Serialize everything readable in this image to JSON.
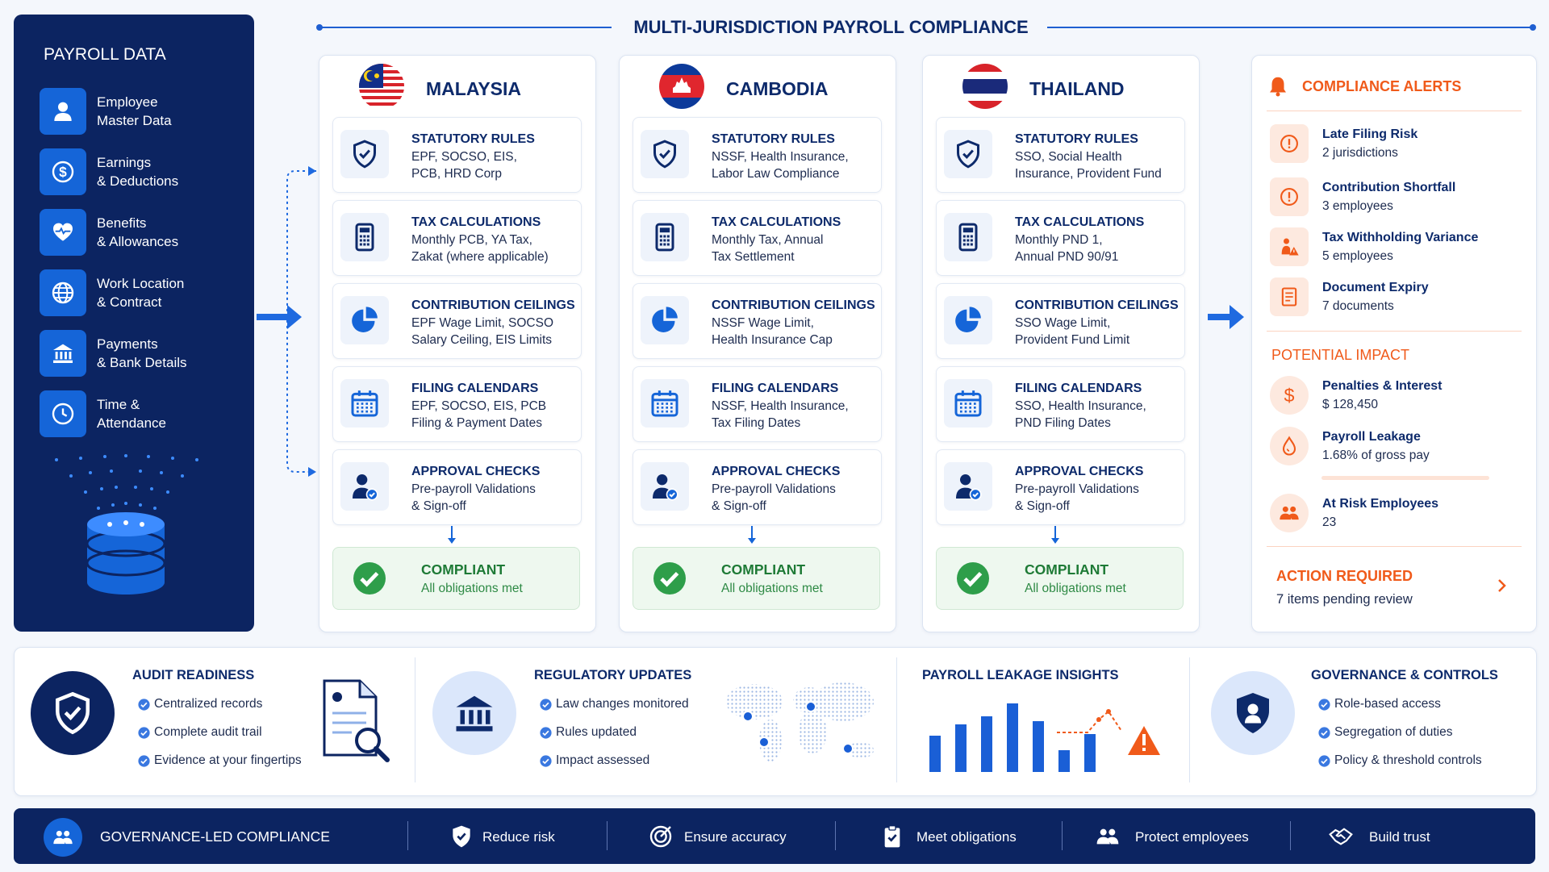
{
  "header": {
    "title": "MULTI-JURISDICTION PAYROLL COMPLIANCE"
  },
  "payroll_data": {
    "title": "PAYROLL DATA",
    "items": [
      {
        "line1": "Employee",
        "line2": "Master Data"
      },
      {
        "line1": "Earnings",
        "line2": "& Deductions"
      },
      {
        "line1": "Benefits",
        "line2": "& Allowances"
      },
      {
        "line1": "Work Location",
        "line2": "& Contract"
      },
      {
        "line1": "Payments",
        "line2": "& Bank Details"
      },
      {
        "line1": "Time &",
        "line2": "Attendance"
      }
    ]
  },
  "jurisdictions": [
    {
      "name": "MALAYSIA",
      "checks": [
        {
          "title": "STATUTORY RULES",
          "lines": [
            "EPF, SOCSO, EIS,",
            "PCB, HRD Corp"
          ]
        },
        {
          "title": "TAX CALCULATIONS",
          "lines": [
            "Monthly PCB, YA Tax,",
            "Zakat (where applicable)"
          ]
        },
        {
          "title": "CONTRIBUTION CEILINGS",
          "lines": [
            "EPF Wage Limit, SOCSO",
            "Salary Ceiling, EIS Limits"
          ]
        },
        {
          "title": "FILING CALENDARS",
          "lines": [
            "EPF, SOCSO, EIS, PCB",
            "Filing & Payment Dates"
          ]
        },
        {
          "title": "APPROVAL CHECKS",
          "lines": [
            "Pre-payroll Validations",
            "& Sign-off"
          ]
        }
      ],
      "status": {
        "title": "COMPLIANT",
        "detail": "All obligations met"
      }
    },
    {
      "name": "CAMBODIA",
      "checks": [
        {
          "title": "STATUTORY RULES",
          "lines": [
            "NSSF, Health Insurance,",
            "Labor Law Compliance"
          ]
        },
        {
          "title": "TAX CALCULATIONS",
          "lines": [
            "Monthly Tax, Annual",
            "Tax Settlement"
          ]
        },
        {
          "title": "CONTRIBUTION CEILINGS",
          "lines": [
            "NSSF Wage Limit,",
            "Health Insurance Cap"
          ]
        },
        {
          "title": "FILING CALENDARS",
          "lines": [
            "NSSF, Health Insurance,",
            "Tax Filing Dates"
          ]
        },
        {
          "title": "APPROVAL CHECKS",
          "lines": [
            "Pre-payroll Validations",
            "& Sign-off"
          ]
        }
      ],
      "status": {
        "title": "COMPLIANT",
        "detail": "All obligations met"
      }
    },
    {
      "name": "THAILAND",
      "checks": [
        {
          "title": "STATUTORY RULES",
          "lines": [
            "SSO, Social Health",
            "Insurance, Provident Fund"
          ]
        },
        {
          "title": "TAX CALCULATIONS",
          "lines": [
            "Monthly PND 1,",
            "Annual PND 90/91"
          ]
        },
        {
          "title": "CONTRIBUTION CEILINGS",
          "lines": [
            "SSO Wage Limit,",
            "Provident Fund Limit"
          ]
        },
        {
          "title": "FILING CALENDARS",
          "lines": [
            "SSO, Health Insurance,",
            "PND Filing Dates"
          ]
        },
        {
          "title": "APPROVAL CHECKS",
          "lines": [
            "Pre-payroll Validations",
            "& Sign-off"
          ]
        }
      ],
      "status": {
        "title": "COMPLIANT",
        "detail": "All obligations met"
      }
    }
  ],
  "alerts": {
    "title": "COMPLIANCE ALERTS",
    "items": [
      {
        "title": "Late Filing Risk",
        "detail": "2 jurisdictions"
      },
      {
        "title": "Contribution Shortfall",
        "detail": "3 employees"
      },
      {
        "title": "Tax Withholding Variance",
        "detail": "5 employees"
      },
      {
        "title": "Document Expiry",
        "detail": "7 documents"
      }
    ]
  },
  "impact": {
    "title": "POTENTIAL IMPACT",
    "items": [
      {
        "title": "Penalties & Interest",
        "detail": "$ 128,450"
      },
      {
        "title": "Payroll Leakage",
        "detail": "1.68% of gross pay"
      },
      {
        "title": "At Risk Employees",
        "detail": "23"
      }
    ]
  },
  "action": {
    "title": "ACTION REQUIRED",
    "detail": "7 items pending review"
  },
  "insights": [
    {
      "title": "AUDIT READINESS",
      "items": [
        "Centralized records",
        "Complete audit trail",
        "Evidence at your fingertips"
      ]
    },
    {
      "title": "REGULATORY UPDATES",
      "items": [
        "Law changes monitored",
        "Rules updated",
        "Impact assessed"
      ]
    },
    {
      "title": "PAYROLL LEAKAGE INSIGHTS",
      "items": []
    },
    {
      "title": "GOVERNANCE & CONTROLS",
      "items": [
        "Role-based access",
        "Segregation of duties",
        "Policy & threshold controls"
      ]
    }
  ],
  "footer": {
    "title": "GOVERNANCE-LED COMPLIANCE",
    "items": [
      "Reduce risk",
      "Ensure accuracy",
      "Meet obligations",
      "Protect employees",
      "Build trust"
    ]
  }
}
